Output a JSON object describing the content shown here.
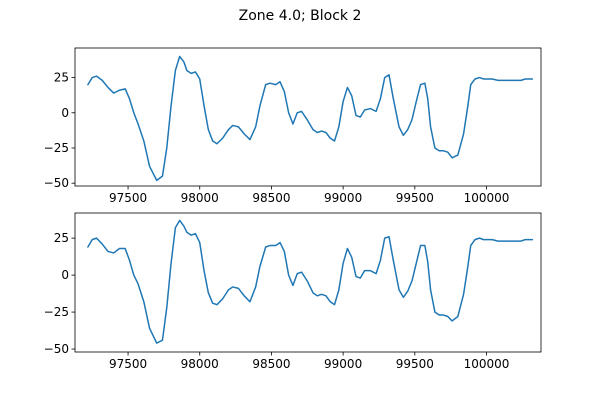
{
  "figure": {
    "suptitle": "Zone 4.0; Block 2",
    "line_color": "#1f77b4"
  },
  "chart_data": [
    {
      "type": "line",
      "x_ticks": [
        97500,
        98000,
        98500,
        99000,
        99500,
        100000
      ],
      "x_tick_labels": [
        "97500",
        "98000",
        "98500",
        "99000",
        "99500",
        "100000"
      ],
      "y_ticks": [
        -50,
        -25,
        0,
        25
      ],
      "y_tick_labels": [
        "−50",
        "−25",
        "0",
        "25"
      ],
      "xlim": [
        97130,
        100380
      ],
      "ylim": [
        -52,
        46
      ],
      "series": [
        {
          "x": [
            97220,
            97250,
            97280,
            97320,
            97360,
            97400,
            97440,
            97480,
            97510,
            97540,
            97570,
            97610,
            97650,
            97700,
            97740,
            97770,
            97800,
            97830,
            97860,
            97890,
            97910,
            97940,
            97970,
            98000,
            98030,
            98060,
            98090,
            98120,
            98160,
            98200,
            98230,
            98270,
            98310,
            98350,
            98390,
            98420,
            98460,
            98490,
            98530,
            98560,
            98590,
            98620,
            98650,
            98680,
            98710,
            98750,
            98790,
            98820,
            98850,
            98880,
            98910,
            98940,
            98970,
            99000,
            99030,
            99060,
            99090,
            99120,
            99150,
            99190,
            99230,
            99260,
            99290,
            99320,
            99350,
            99390,
            99420,
            99450,
            99480,
            99510,
            99540,
            99570,
            99590,
            99610,
            99640,
            99670,
            99700,
            99730,
            99760,
            99800,
            99840,
            99870,
            99890,
            99920,
            99950,
            99980,
            100010,
            100040,
            100080,
            100110,
            100150,
            100180,
            100210,
            100240,
            100270,
            100300,
            100320
          ],
          "y": [
            20,
            25,
            26,
            23,
            18,
            14,
            16,
            17,
            10,
            0,
            -8,
            -20,
            -38,
            -48,
            -45,
            -25,
            5,
            30,
            40,
            36,
            30,
            28,
            29,
            24,
            5,
            -12,
            -20,
            -22,
            -18,
            -12,
            -9,
            -10,
            -15,
            -19,
            -10,
            5,
            20,
            21,
            20,
            22,
            15,
            0,
            -8,
            0,
            1,
            -5,
            -12,
            -14,
            -13,
            -14,
            -18,
            -20,
            -10,
            8,
            18,
            12,
            -2,
            -3,
            2,
            3,
            1,
            10,
            25,
            27,
            10,
            -10,
            -16,
            -12,
            -5,
            8,
            20,
            21,
            10,
            -10,
            -25,
            -27,
            -27,
            -28,
            -32,
            -30,
            -15,
            5,
            20,
            24,
            25,
            24,
            24,
            24,
            23,
            23,
            23,
            23,
            23,
            23,
            24,
            24,
            24
          ]
        }
      ]
    },
    {
      "type": "line",
      "x_ticks": [
        97500,
        98000,
        98500,
        99000,
        99500,
        100000
      ],
      "x_tick_labels": [
        "97500",
        "98000",
        "98500",
        "99000",
        "99500",
        "100000"
      ],
      "y_ticks": [
        -50,
        -25,
        0,
        25
      ],
      "y_tick_labels": [
        "−50",
        "−25",
        "0",
        "25"
      ],
      "xlim": [
        97130,
        100380
      ],
      "ylim": [
        -52,
        42
      ],
      "series": [
        {
          "x": [
            97220,
            97250,
            97280,
            97320,
            97360,
            97400,
            97440,
            97480,
            97510,
            97540,
            97570,
            97610,
            97650,
            97700,
            97740,
            97770,
            97800,
            97830,
            97860,
            97890,
            97910,
            97940,
            97970,
            98000,
            98030,
            98060,
            98090,
            98120,
            98160,
            98200,
            98230,
            98270,
            98310,
            98350,
            98390,
            98420,
            98460,
            98490,
            98530,
            98560,
            98590,
            98620,
            98650,
            98680,
            98710,
            98750,
            98790,
            98820,
            98850,
            98880,
            98910,
            98940,
            98970,
            99000,
            99030,
            99060,
            99090,
            99120,
            99150,
            99190,
            99230,
            99260,
            99290,
            99320,
            99350,
            99390,
            99420,
            99450,
            99480,
            99510,
            99540,
            99570,
            99590,
            99610,
            99640,
            99670,
            99700,
            99730,
            99760,
            99800,
            99840,
            99870,
            99890,
            99920,
            99950,
            99980,
            100010,
            100040,
            100080,
            100110,
            100150,
            100180,
            100210,
            100240,
            100270,
            100300,
            100320
          ],
          "y": [
            19,
            24,
            25,
            21,
            16,
            15,
            18,
            18,
            10,
            0,
            -6,
            -18,
            -36,
            -46,
            -44,
            -22,
            8,
            32,
            37,
            33,
            29,
            27,
            28,
            22,
            3,
            -12,
            -19,
            -20,
            -16,
            -10,
            -8,
            -9,
            -14,
            -18,
            -8,
            6,
            19,
            20,
            20,
            22,
            16,
            0,
            -7,
            1,
            2,
            -4,
            -12,
            -14,
            -13,
            -14,
            -18,
            -20,
            -10,
            8,
            18,
            12,
            -1,
            -2,
            3,
            3,
            1,
            10,
            25,
            26,
            10,
            -10,
            -15,
            -11,
            -4,
            8,
            20,
            20,
            9,
            -10,
            -25,
            -27,
            -27,
            -28,
            -31,
            -28,
            -13,
            6,
            20,
            24,
            25,
            24,
            24,
            24,
            23,
            23,
            23,
            23,
            23,
            23,
            24,
            24,
            24
          ]
        }
      ]
    }
  ]
}
